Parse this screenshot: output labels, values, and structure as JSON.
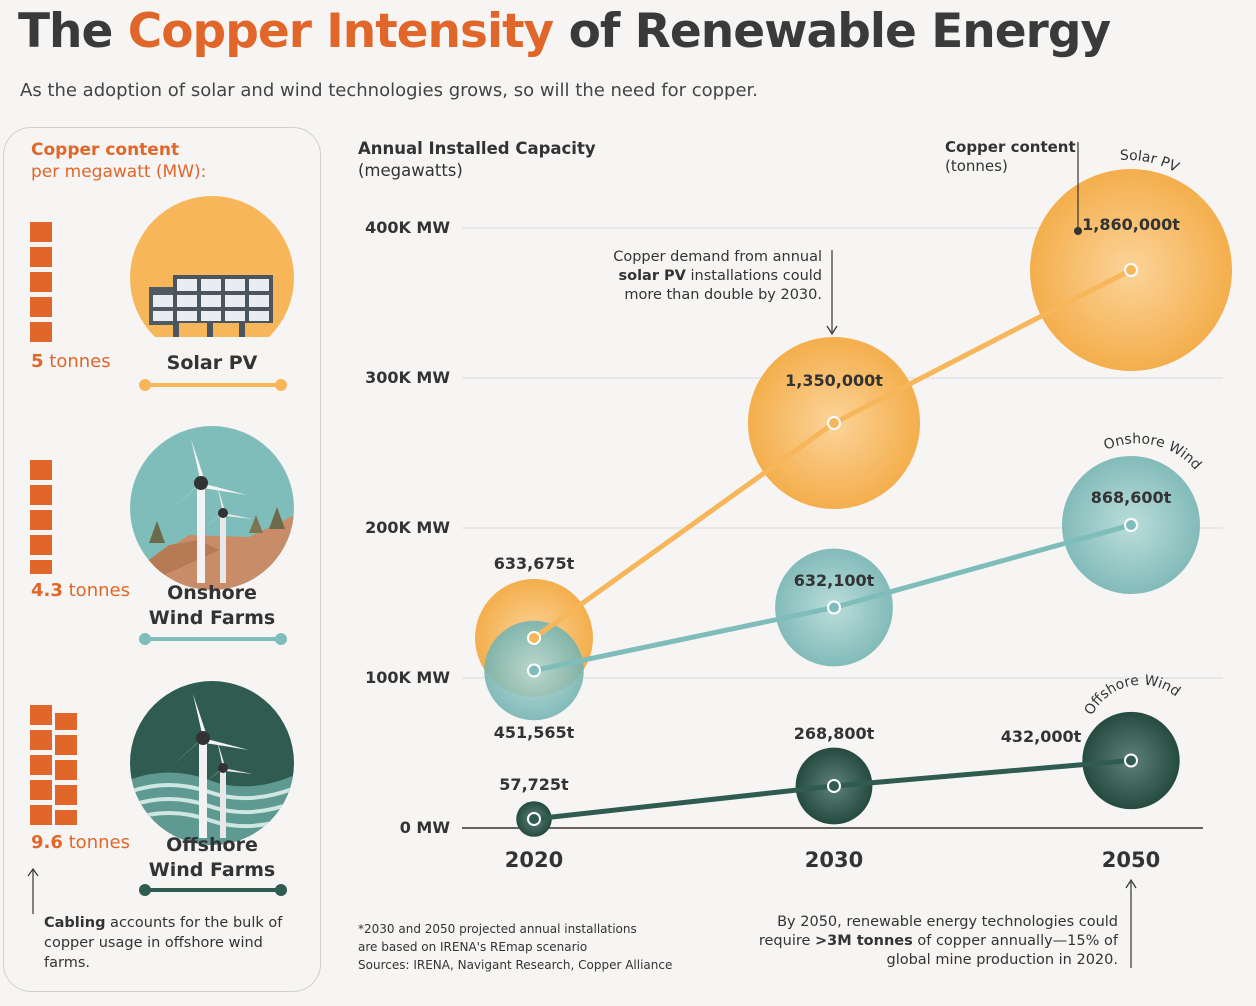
{
  "header": {
    "title_pre": "The ",
    "title_highlight": "Copper Intensity",
    "title_post": " of Renewable Energy",
    "subtitle": "As the adoption of solar and wind technologies grows, so will the need for copper."
  },
  "colors": {
    "orange": "#e0662a",
    "solar": "#f6b659",
    "onshore": "#7fbdbb",
    "offshore": "#2f5b50",
    "text": "#333333"
  },
  "left_panel": {
    "heading_bold": "Copper content",
    "heading_rest": "per megawatt (MW):",
    "items": [
      {
        "tonnes_value": "5",
        "tonnes_unit": "tonnes",
        "label": "Solar PV",
        "icon": "solar-panel-icon",
        "blocks": 5
      },
      {
        "tonnes_value": "4.3",
        "tonnes_unit": "tonnes",
        "label": "Onshore Wind Farms",
        "label_line1": "Onshore",
        "label_line2": "Wind Farms",
        "icon": "onshore-wind-icon",
        "blocks": 5
      },
      {
        "tonnes_value": "9.6",
        "tonnes_unit": "tonnes",
        "label": "Offshore Wind Farms",
        "label_line1": "Offshore",
        "label_line2": "Wind Farms",
        "icon": "offshore-wind-icon",
        "blocks": 10
      }
    ],
    "cabling_note_bold": "Cabling",
    "cabling_note_rest": " accounts for the bulk of copper usage in offshore wind farms."
  },
  "chart": {
    "yaxis_title_bold": "Annual Installed Capacity",
    "yaxis_title_unit": "(megawatts)",
    "bubble_title_bold": "Copper content",
    "bubble_title_unit": "(tonnes)",
    "solar_annotation_1": "Copper demand from annual",
    "solar_annotation_bold": "solar PV",
    "solar_annotation_2": " installations could",
    "solar_annotation_3": "more than double by 2030.",
    "bottom_annotation_1": "By 2050, renewable energy technologies could",
    "bottom_annotation_2a": "require ",
    "bottom_annotation_bold": ">3M tonnes",
    "bottom_annotation_2b": " of copper annually—15% of",
    "bottom_annotation_3": "global mine production in 2020.",
    "footnote_1": "*2030 and 2050 projected annual installations",
    "footnote_2": "are based on IRENA's REmap scenario",
    "footnote_3": "Sources: IRENA, Navigant Research, Copper Alliance"
  },
  "chart_data": {
    "type": "scatter",
    "title": "The Copper Intensity of Renewable Energy",
    "ylabel": "Annual Installed Capacity (megawatts)",
    "xlabel": "",
    "ylim": [
      0,
      400000
    ],
    "yticks": [
      0,
      100000,
      200000,
      300000,
      400000
    ],
    "ytick_labels": [
      "0 MW",
      "100K MW",
      "200K MW",
      "300K MW",
      "400K MW"
    ],
    "categories": [
      "2020",
      "2030",
      "2050"
    ],
    "bubble_size_label": "Copper content (tonnes)",
    "series": [
      {
        "name": "Solar PV",
        "curve_label": "Solar PV",
        "color": "#f6b659",
        "capacity_mw": [
          126700,
          270000,
          372000
        ],
        "copper_tonnes": [
          633675,
          1350000,
          1860000
        ],
        "copper_labels": [
          "633,675t",
          "1,350,000t",
          "1,860,000t"
        ]
      },
      {
        "name": "Onshore Wind",
        "curve_label": "Onshore Wind",
        "color": "#7fbdbb",
        "capacity_mw": [
          105000,
          147000,
          202000
        ],
        "copper_tonnes": [
          451565,
          632100,
          868600
        ],
        "copper_labels": [
          "451,565t",
          "632,100t",
          "868,600t"
        ]
      },
      {
        "name": "Offshore Wind",
        "curve_label": "Offshore Wind",
        "color": "#2f5b50",
        "capacity_mw": [
          6000,
          28000,
          45000
        ],
        "copper_tonnes": [
          57725,
          268800,
          432000
        ],
        "copper_labels": [
          "57,725t",
          "268,800t",
          "432,000t"
        ]
      }
    ]
  }
}
